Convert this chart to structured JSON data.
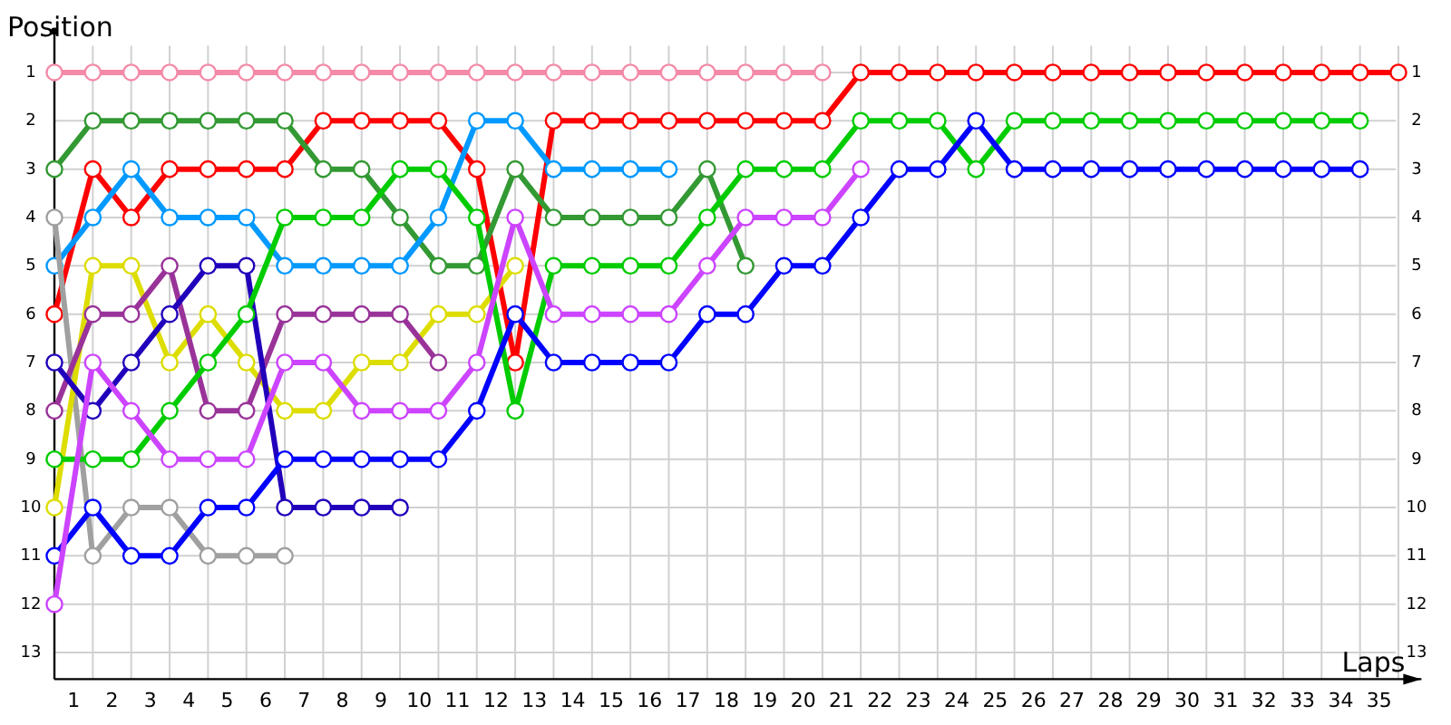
{
  "chart_data": {
    "type": "line",
    "xlabel": "Laps",
    "ylabel": "Position",
    "marker": "circle",
    "line_style": "solid",
    "grid": true,
    "x": [
      0,
      1,
      2,
      3,
      4,
      5,
      6,
      7,
      8,
      9,
      10,
      11,
      12,
      13,
      14,
      15,
      16,
      17,
      18,
      19,
      20,
      21,
      22,
      23,
      24,
      25,
      26,
      27,
      28,
      29,
      30,
      31,
      32,
      33,
      34,
      35
    ],
    "xlim": [
      0,
      35.6
    ],
    "xticks": [
      {
        "value": 0.5,
        "label": "1"
      },
      {
        "value": 1.5,
        "label": "2"
      },
      {
        "value": 2.5,
        "label": "3"
      },
      {
        "value": 3.5,
        "label": "4"
      },
      {
        "value": 4.5,
        "label": "5"
      },
      {
        "value": 5.5,
        "label": "6"
      },
      {
        "value": 6.5,
        "label": "7"
      },
      {
        "value": 7.5,
        "label": "8"
      },
      {
        "value": 8.5,
        "label": "9"
      },
      {
        "value": 9.5,
        "label": "10"
      },
      {
        "value": 10.5,
        "label": "11"
      },
      {
        "value": 11.5,
        "label": "12"
      },
      {
        "value": 12.5,
        "label": "13"
      },
      {
        "value": 13.5,
        "label": "14"
      },
      {
        "value": 14.5,
        "label": "15"
      },
      {
        "value": 15.5,
        "label": "16"
      },
      {
        "value": 16.5,
        "label": "17"
      },
      {
        "value": 17.5,
        "label": "18"
      },
      {
        "value": 18.5,
        "label": "19"
      },
      {
        "value": 19.5,
        "label": "20"
      },
      {
        "value": 20.5,
        "label": "21"
      },
      {
        "value": 21.5,
        "label": "22"
      },
      {
        "value": 22.5,
        "label": "23"
      },
      {
        "value": 23.5,
        "label": "24"
      },
      {
        "value": 24.5,
        "label": "25"
      },
      {
        "value": 25.5,
        "label": "26"
      },
      {
        "value": 26.5,
        "label": "27"
      },
      {
        "value": 27.5,
        "label": "28"
      },
      {
        "value": 28.5,
        "label": "29"
      },
      {
        "value": 29.5,
        "label": "30"
      },
      {
        "value": 30.5,
        "label": "31"
      },
      {
        "value": 31.5,
        "label": "32"
      },
      {
        "value": 32.5,
        "label": "33"
      },
      {
        "value": 33.5,
        "label": "34"
      },
      {
        "value": 34.5,
        "label": "35"
      }
    ],
    "ylim": [
      13.55,
      0.45
    ],
    "yticks": [
      1,
      2,
      3,
      4,
      5,
      6,
      7,
      8,
      9,
      10,
      11,
      12,
      13
    ],
    "y2lim": [
      13.55,
      0.45
    ],
    "y2ticks": [
      1,
      2,
      3,
      4,
      5,
      6,
      7,
      8,
      9,
      10,
      11,
      12,
      13
    ],
    "series": [
      {
        "color": "#f48aa8",
        "values": [
          1,
          1,
          1,
          1,
          1,
          1,
          1,
          1,
          1,
          1,
          1,
          1,
          1,
          1,
          1,
          1,
          1,
          1,
          1,
          1,
          1,
          null,
          null,
          null,
          null,
          null,
          null,
          null,
          null,
          null,
          null,
          null,
          null,
          null,
          null,
          null
        ]
      },
      {
        "color": "#ff0000",
        "values": [
          6,
          3,
          4,
          3,
          3,
          3,
          3,
          2,
          2,
          2,
          2,
          3,
          7,
          2,
          2,
          2,
          2,
          2,
          2,
          2,
          2,
          1,
          1,
          1,
          1,
          1,
          1,
          1,
          1,
          1,
          1,
          1,
          1,
          1,
          1,
          1
        ]
      },
      {
        "color": "#339933",
        "values": [
          3,
          2,
          2,
          2,
          2,
          2,
          2,
          3,
          3,
          4,
          5,
          5,
          3,
          4,
          4,
          4,
          4,
          3,
          5,
          null,
          null,
          null,
          null,
          null,
          null,
          null,
          null,
          null,
          null,
          null,
          null,
          null,
          null,
          null,
          null,
          null
        ]
      },
      {
        "color": "#0099ff",
        "values": [
          5,
          4,
          3,
          4,
          4,
          4,
          5,
          5,
          5,
          5,
          4,
          2,
          2,
          3,
          3,
          3,
          3,
          null,
          null,
          null,
          null,
          null,
          null,
          null,
          null,
          null,
          null,
          null,
          null,
          null,
          null,
          null,
          null,
          null,
          null,
          null
        ]
      },
      {
        "color": "#a0a0a0",
        "values": [
          4,
          11,
          10,
          10,
          11,
          11,
          11,
          null,
          null,
          null,
          null,
          null,
          null,
          null,
          null,
          null,
          null,
          null,
          null,
          null,
          null,
          null,
          null,
          null,
          null,
          null,
          null,
          null,
          null,
          null,
          null,
          null,
          null,
          null,
          null,
          null
        ]
      },
      {
        "color": "#dddd00",
        "values": [
          10,
          5,
          5,
          7,
          6,
          7,
          8,
          8,
          7,
          7,
          6,
          6,
          5,
          null,
          null,
          null,
          null,
          null,
          null,
          null,
          null,
          null,
          null,
          null,
          null,
          null,
          null,
          null,
          null,
          null,
          null,
          null,
          null,
          null,
          null,
          null
        ]
      },
      {
        "color": "#993399",
        "values": [
          8,
          6,
          6,
          5,
          8,
          8,
          6,
          6,
          6,
          6,
          7,
          null,
          null,
          null,
          null,
          null,
          null,
          null,
          null,
          null,
          null,
          null,
          null,
          null,
          null,
          null,
          null,
          null,
          null,
          null,
          null,
          null,
          null,
          null,
          null,
          null
        ]
      },
      {
        "color": "#2200bb",
        "values": [
          7,
          8,
          7,
          6,
          5,
          5,
          10,
          10,
          10,
          10,
          null,
          null,
          null,
          null,
          null,
          null,
          null,
          null,
          null,
          null,
          null,
          null,
          null,
          null,
          null,
          null,
          null,
          null,
          null,
          null,
          null,
          null,
          null,
          null,
          null,
          null
        ]
      },
      {
        "color": "#00cc00",
        "values": [
          9,
          9,
          9,
          8,
          7,
          6,
          4,
          4,
          4,
          3,
          3,
          4,
          8,
          5,
          5,
          5,
          5,
          4,
          3,
          3,
          3,
          2,
          2,
          2,
          3,
          2,
          2,
          2,
          2,
          2,
          2,
          2,
          2,
          2,
          2,
          null
        ]
      },
      {
        "color": "#0000ff",
        "values": [
          11,
          10,
          11,
          11,
          10,
          10,
          9,
          9,
          9,
          9,
          9,
          8,
          6,
          7,
          7,
          7,
          7,
          6,
          6,
          5,
          5,
          4,
          3,
          3,
          2,
          3,
          3,
          3,
          3,
          3,
          3,
          3,
          3,
          3,
          3,
          null
        ]
      },
      {
        "color": "#cc44ff",
        "values": [
          12,
          7,
          8,
          9,
          9,
          9,
          7,
          7,
          8,
          8,
          8,
          7,
          4,
          6,
          6,
          6,
          6,
          5,
          4,
          4,
          4,
          3,
          null,
          null,
          null,
          null,
          null,
          null,
          null,
          null,
          null,
          null,
          null,
          null,
          null,
          null
        ]
      }
    ]
  }
}
